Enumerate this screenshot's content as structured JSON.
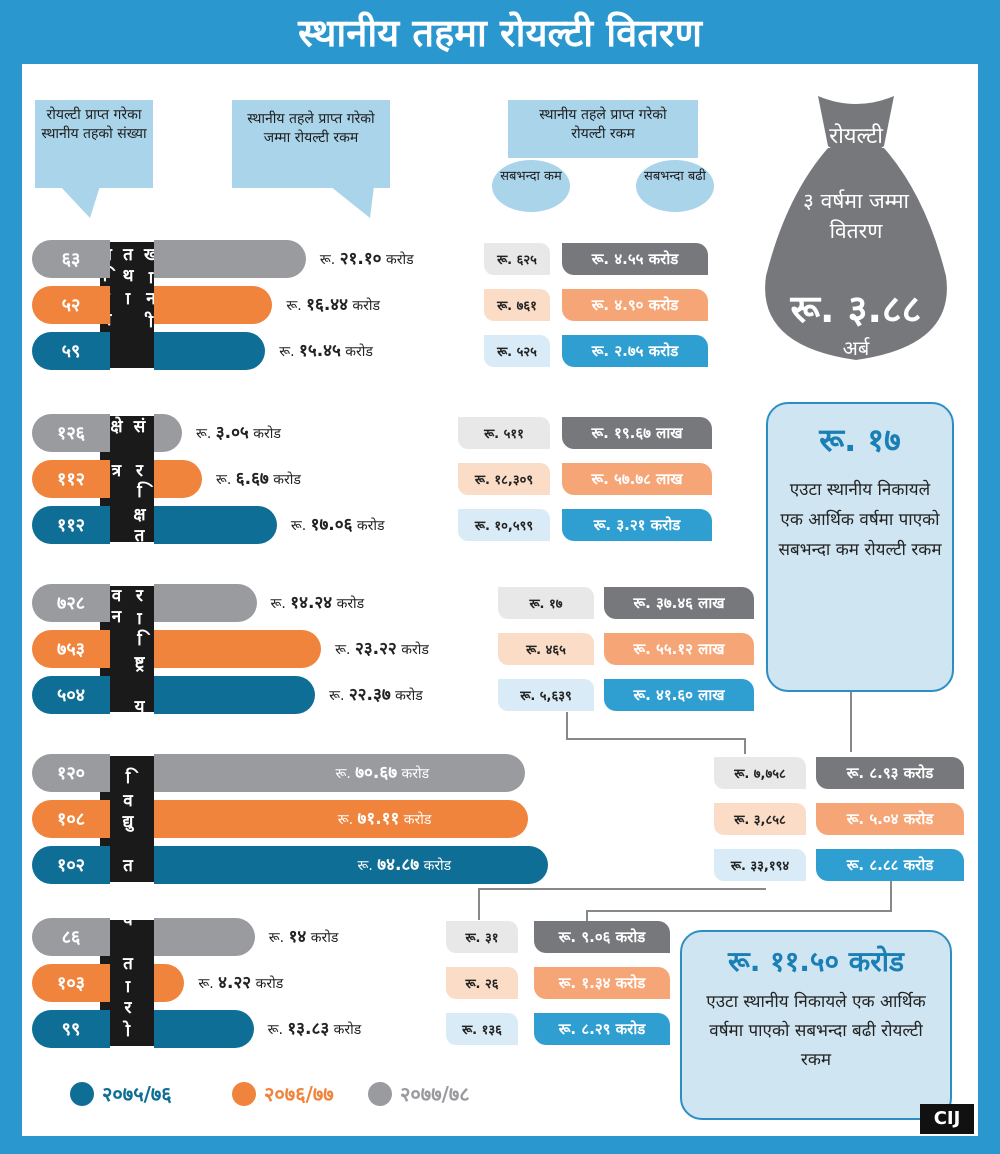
{
  "title": "स्थानीय तहमा रोयल्टी वितरण",
  "headers": {
    "count": "रोयल्टी प्राप्त गरेका स्थानीय तहको संख्या",
    "total": "स्थानीय तहले प्राप्त गरेको जम्मा रोयल्टी रकम",
    "range": "स्थानीय तहले प्राप्त गरेको रोयल्टी रकम",
    "min": "सबभन्दा कम",
    "max": "सबभन्दा बढी"
  },
  "bag": {
    "line1": "रोयल्टी",
    "line2": "३ वर्षमा जम्मा वितरण",
    "amount": "रू. ३.८८",
    "unit": "अर्ब"
  },
  "info_min": {
    "amount": "रू. १७",
    "text": "एउटा स्थानीय निकायले एक आर्थिक वर्षमा पाएको सबभन्दा कम रोयल्टी रकम"
  },
  "info_max": {
    "amount": "रू. ११.५० करोड",
    "text": "एउटा स्थानीय निकायले एक आर्थिक वर्षमा पाएको सबभन्दा बढी रोयल्टी रकम"
  },
  "logo": "CIJ",
  "colors": {
    "2075/76": "#0e6e95",
    "2076/77": "#f0843c",
    "2077/78": "#9a9b9f",
    "min_boxes": [
      "#e8e8e9",
      "#fbdcc6",
      "#d8ebf6"
    ],
    "max_boxes": [
      "#77787b",
      "#f6a676",
      "#2f9fd2"
    ]
  },
  "chart_data": {
    "type": "bar",
    "legend": [
      "२०७५/७६",
      "२०७६/७७",
      "२०७७/७८"
    ],
    "legend_position": "bottom-left",
    "categories": [
      {
        "name": "खानी तथा खनिज",
        "rows": [
          {
            "year": "२०७७/७८",
            "count": "६३",
            "amount_label": "२१.१०",
            "value": 21.1,
            "unit": "करोड",
            "min": "रू. ६२५",
            "max": "रू. ४.५५ करोड"
          },
          {
            "year": "२०७६/७७",
            "count": "५२",
            "amount_label": "१६.४४",
            "value": 16.44,
            "unit": "करोड",
            "min": "रू. ७६१",
            "max": "रू. ४.९० करोड"
          },
          {
            "year": "२०७५/७६",
            "count": "५९",
            "amount_label": "१५.४५",
            "value": 15.45,
            "unit": "करोड",
            "min": "रू. ५२५",
            "max": "रू. २.७५ करोड"
          }
        ]
      },
      {
        "name": "संरक्षित क्षेत्र",
        "rows": [
          {
            "year": "२०७७/७८",
            "count": "१२६",
            "amount_label": "३.०५",
            "value": 3.05,
            "unit": "करोड",
            "min": "रू. ५११",
            "max": "रू. १९.६७ लाख"
          },
          {
            "year": "२०७६/७७",
            "count": "११२",
            "amount_label": "६.६७",
            "value": 6.67,
            "unit": "करोड",
            "min": "रू. १८,३०९",
            "max": "रू. ५७.७८ लाख"
          },
          {
            "year": "२०७५/७६",
            "count": "११२",
            "amount_label": "१७.०६",
            "value": 17.06,
            "unit": "करोड",
            "min": "रू. १०,५९९",
            "max": "रू. ३.२१ करोड"
          }
        ]
      },
      {
        "name": "राष्ट्रिय वन",
        "rows": [
          {
            "year": "२०७७/७८",
            "count": "७२८",
            "amount_label": "१४.२४",
            "value": 14.24,
            "unit": "करोड",
            "min": "रू. १७",
            "max": "रू. ३७.४६ लाख"
          },
          {
            "year": "२०७६/७७",
            "count": "७५३",
            "amount_label": "२३.२२",
            "value": 23.22,
            "unit": "करोड",
            "min": "रू. ४६५",
            "max": "रू. ५५.१२ लाख"
          },
          {
            "year": "२०७५/७६",
            "count": "५०४",
            "amount_label": "२२.३७",
            "value": 22.37,
            "unit": "करोड",
            "min": "रू. ५,६३९",
            "max": "रू. ४१.६० लाख"
          }
        ]
      },
      {
        "name": "विद्युत",
        "rows": [
          {
            "year": "२०७७/७८",
            "count": "१२०",
            "amount_label": "७०.६७",
            "value": 70.67,
            "unit": "करोड",
            "min": "रू. ७,७५८",
            "max": "रू. ८.९३ करोड"
          },
          {
            "year": "२०७६/७७",
            "count": "१०८",
            "amount_label": "७१.११",
            "value": 71.11,
            "unit": "करोड",
            "min": "रू. ३,८५८",
            "max": "रू. ५.०४ करोड"
          },
          {
            "year": "२०७५/७६",
            "count": "१०२",
            "amount_label": "७४.८७",
            "value": 74.87,
            "unit": "करोड",
            "min": "रू. ३३,१९४",
            "max": "रू. ८.८८ करोड"
          }
        ]
      },
      {
        "name": "पर्वतारोहण",
        "rows": [
          {
            "year": "२०७७/७८",
            "count": "८६",
            "amount_label": "१४",
            "value": 14,
            "unit": "करोड",
            "min": "रू. ३१",
            "max": "रू. ९.०६ करोड"
          },
          {
            "year": "२०७६/७७",
            "count": "१०३",
            "amount_label": "४.२२",
            "value": 4.22,
            "unit": "करोड",
            "min": "रू. २६",
            "max": "रू. १.३४ करोड"
          },
          {
            "year": "२०७५/७६",
            "count": "९९",
            "amount_label": "१३.८३",
            "value": 13.83,
            "unit": "करोड",
            "min": "रू. १३६",
            "max": "रू. ८.२९ करोड"
          }
        ]
      }
    ]
  }
}
